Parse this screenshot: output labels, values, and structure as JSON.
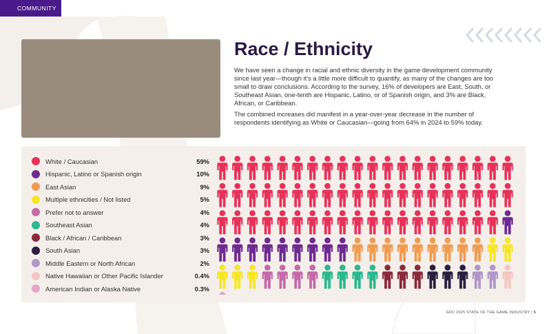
{
  "header": {
    "section_tag": "COMMUNITY"
  },
  "colors": {
    "tag_bg": "#4a1a8a",
    "panel_bg": "#f4efea",
    "photo_placeholder": "#9a8c7d",
    "title": "#2a1a44"
  },
  "article": {
    "title": "Race / Ethnicity",
    "paragraphs": [
      "We have seen a change in racial and ethnic diversity in the game development community since last year—though it's a little more difficult to quantify, as many of the changes are too small to draw conclusions. According to the survey, 16% of developers are East, South, or Southeast Asian, one-tenth are Hispanic, Latino, or of Spanish origin, and 3% are Black, African, or Caribbean.",
      "The combined increases did manifest in a year-over-year decrease in the number of respondents identifying as White or Caucasian—going from 64% in 2024 to 59% today."
    ]
  },
  "chart_data": {
    "type": "pictogram",
    "unit": "1 figure ≈ 1% of respondents",
    "series": [
      {
        "name": "White / Caucasian",
        "value": 59,
        "label": "59%",
        "color": "#e8315a"
      },
      {
        "name": "Hispanic, Latino or Spanish origin",
        "value": 10,
        "label": "10%",
        "color": "#6e2a93"
      },
      {
        "name": "East Asian",
        "value": 9,
        "label": "9%",
        "color": "#f29b4f"
      },
      {
        "name": "Multiple ethnicities / Not listed",
        "value": 5,
        "label": "5%",
        "color": "#f6e627"
      },
      {
        "name": "Prefer not to answer",
        "value": 4,
        "label": "4%",
        "color": "#c46aa9"
      },
      {
        "name": "Southeast Asian",
        "value": 4,
        "label": "4%",
        "color": "#2bb88e"
      },
      {
        "name": "Black / African / Caribbean",
        "value": 3,
        "label": "3%",
        "color": "#8a2a3c"
      },
      {
        "name": "South Asian",
        "value": 3,
        "label": "3%",
        "color": "#2a1f3f"
      },
      {
        "name": "Middle Eastern or North African",
        "value": 2,
        "label": "2%",
        "color": "#b197c8"
      },
      {
        "name": "Native Hawaiian or Other Pacific Islander",
        "value": 0.4,
        "label": "0.4%",
        "color": "#f6c6c2"
      },
      {
        "name": "American Indian or Alaska Native",
        "value": 0.3,
        "label": "0.3%",
        "color": "#e2a8c8"
      }
    ],
    "figures_per_series": [
      59,
      10,
      9,
      5,
      4,
      4,
      3,
      3,
      2,
      1,
      1
    ]
  },
  "footer": {
    "report": "GDC 2025 STATE OF THE GAME INDUSTRY",
    "separator": "|",
    "page": "5"
  }
}
